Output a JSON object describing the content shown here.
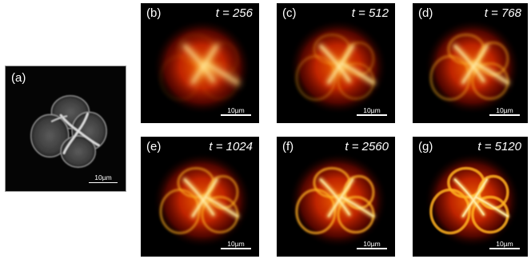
{
  "figure": {
    "panels": [
      {
        "id": "a",
        "label": "(a)",
        "t_text": "",
        "scale": "10µm",
        "style": "gray"
      },
      {
        "id": "b",
        "label": "(b)",
        "t_text": "t = 256",
        "scale": "10µm",
        "style": "heat",
        "detail": 0.15
      },
      {
        "id": "c",
        "label": "(c)",
        "t_text": "t = 512",
        "scale": "10µm",
        "style": "heat",
        "detail": 0.45
      },
      {
        "id": "d",
        "label": "(d)",
        "t_text": "t = 768",
        "scale": "10µm",
        "style": "heat",
        "detail": 0.6
      },
      {
        "id": "e",
        "label": "(e)",
        "t_text": "t = 1024",
        "scale": "10µm",
        "style": "heat",
        "detail": 0.7
      },
      {
        "id": "f",
        "label": "(f)",
        "t_text": "t = 2560",
        "scale": "10µm",
        "style": "heat",
        "detail": 0.85
      },
      {
        "id": "g",
        "label": "(g)",
        "t_text": "t = 5120",
        "scale": "10µm",
        "style": "heat",
        "detail": 1.0
      }
    ]
  }
}
